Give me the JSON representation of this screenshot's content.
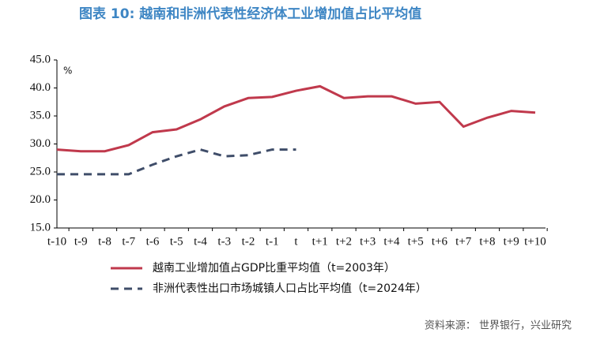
{
  "chart_data": {
    "type": "line",
    "title": "图表 10: 越南和非洲代表性经济体工业增加值占比平均值",
    "y_label": "%",
    "source": "资料来源： 世界银行，兴业研究",
    "categories": [
      "t-10",
      "t-9",
      "t-8",
      "t-7",
      "t-6",
      "t-5",
      "t-4",
      "t-3",
      "t-2",
      "t-1",
      "t",
      "t+1",
      "t+2",
      "t+3",
      "t+4",
      "t+5",
      "t+6",
      "t+7",
      "t+8",
      "t+9",
      "t+10"
    ],
    "series": [
      {
        "name": "越南工业增加值占GDP比重平均值（t=2003年）",
        "color": "#c0394c",
        "dash": false,
        "values": [
          29.0,
          28.7,
          28.7,
          29.8,
          32.1,
          32.6,
          34.4,
          36.7,
          38.2,
          38.4,
          39.5,
          40.3,
          38.2,
          38.5,
          38.5,
          37.2,
          37.5,
          33.1,
          34.7,
          35.9,
          35.6
        ]
      },
      {
        "name": "非洲代表性出口市场城镇人口占比平均值（t=2024年）",
        "color": "#3f4d69",
        "dash": true,
        "values": [
          24.6,
          24.6,
          24.6,
          24.6,
          26.3,
          27.8,
          29.0,
          27.8,
          28.0,
          29.0,
          29.0,
          null,
          null,
          null,
          null,
          null,
          null,
          null,
          null,
          null,
          null
        ]
      }
    ],
    "ylim": [
      15,
      45
    ],
    "yticks": [
      {
        "value": 15,
        "label": "15.0"
      },
      {
        "value": 20,
        "label": "20.0"
      },
      {
        "value": 25,
        "label": "25.0"
      },
      {
        "value": 30,
        "label": "30.0"
      },
      {
        "value": 35,
        "label": "35.0"
      },
      {
        "value": 40,
        "label": "40.0"
      },
      {
        "value": 45,
        "label": "45.0"
      }
    ]
  }
}
